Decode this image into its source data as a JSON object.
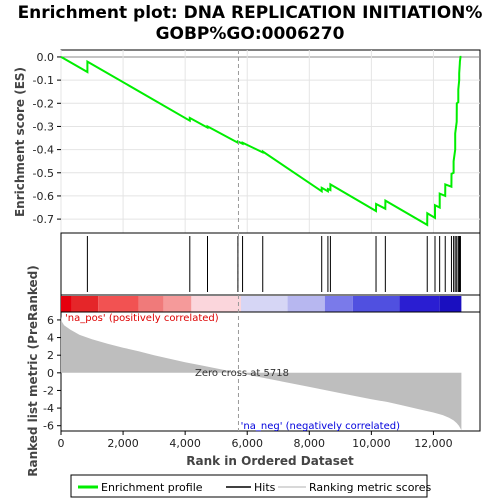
{
  "chart_data": {
    "type": "line",
    "title_line1": "Enrichment plot: DNA REPLICATION INITIATION%",
    "title_line2": "GOBP%GO:0006270",
    "ylabel_top": "Enrichment score (ES)",
    "ylabel_bottom": "Ranked list metric (PreRanked)",
    "xlabel": "Rank in Ordered Dataset",
    "xlim": [
      0,
      13500
    ],
    "es_ylim": [
      -0.76,
      0.03
    ],
    "metric_ylim": [
      -6.6,
      6.9
    ],
    "x_ticks": [
      0,
      2000,
      4000,
      6000,
      8000,
      10000,
      12000
    ],
    "x_tick_labels": [
      "0",
      "2,000",
      "4,000",
      "6,000",
      "8,000",
      "10,000",
      "12,000"
    ],
    "es_ticks": [
      0.0,
      -0.1,
      -0.2,
      -0.3,
      -0.4,
      -0.5,
      -0.6,
      -0.7
    ],
    "es_tick_labels": [
      "0.0",
      "-0.1",
      "-0.2",
      "-0.3",
      "-0.4",
      "-0.5",
      "-0.6",
      "-0.7"
    ],
    "metric_ticks": [
      6,
      4,
      2,
      0,
      -2,
      -4,
      -6
    ],
    "metric_tick_labels": [
      "6",
      "4",
      "2",
      "0",
      "-2",
      "-4",
      "-6"
    ],
    "n_genes": 12900,
    "zero_cross": 5718,
    "zero_cross_label": "Zero cross at 5718",
    "pos_label": "'na_pos' (positively correlated)",
    "neg_label": "'na_neg' (negatively correlated)",
    "enrichment_profile": {
      "x": [
        0,
        850,
        851,
        4150,
        4151,
        4720,
        4721,
        5700,
        5701,
        5850,
        5851,
        6500,
        6501,
        8400,
        8401,
        8600,
        8601,
        8680,
        8681,
        10150,
        10151,
        10450,
        10451,
        11800,
        11801,
        12050,
        12051,
        12200,
        12201,
        12380,
        12381,
        12580,
        12581,
        12650,
        12651,
        12700,
        12701,
        12750,
        12751,
        12800,
        12801,
        12830,
        12831,
        12850,
        12851,
        12870,
        12871,
        12900
      ],
      "y": [
        0.0,
        -0.065,
        -0.02,
        -0.275,
        -0.263,
        -0.305,
        -0.3,
        -0.37,
        -0.365,
        -0.375,
        -0.37,
        -0.412,
        -0.408,
        -0.58,
        -0.565,
        -0.58,
        -0.57,
        -0.575,
        -0.55,
        -0.665,
        -0.635,
        -0.655,
        -0.62,
        -0.725,
        -0.675,
        -0.695,
        -0.64,
        -0.65,
        -0.59,
        -0.6,
        -0.55,
        -0.56,
        -0.505,
        -0.5,
        -0.45,
        -0.4,
        -0.33,
        -0.28,
        -0.2,
        -0.195,
        -0.14,
        -0.1,
        -0.07,
        -0.03,
        -0.02,
        -0.003,
        0.0,
        0.0
      ]
    },
    "hits": [
      850,
      4150,
      4720,
      5700,
      5850,
      6500,
      8400,
      8600,
      8680,
      10150,
      10450,
      11800,
      12050,
      12200,
      12380,
      12580,
      12650,
      12700,
      12750,
      12800,
      12830,
      12850,
      12870
    ],
    "metric_curve": {
      "x": [
        0,
        30,
        100,
        300,
        600,
        1000,
        1500,
        2000,
        2500,
        3000,
        3500,
        4000,
        4500,
        5000,
        5500,
        5718,
        6000,
        7000,
        8000,
        9000,
        10000,
        10500,
        11000,
        11500,
        12000,
        12300,
        12500,
        12650,
        12750,
        12820,
        12870,
        12900
      ],
      "y": [
        6.4,
        5.8,
        5.4,
        4.9,
        4.3,
        3.8,
        3.3,
        2.85,
        2.45,
        2.0,
        1.6,
        1.2,
        0.85,
        0.5,
        0.15,
        0.0,
        -0.2,
        -0.9,
        -1.6,
        -2.3,
        -3.0,
        -3.3,
        -3.7,
        -4.1,
        -4.5,
        -4.8,
        -5.1,
        -5.4,
        -5.7,
        -6.0,
        -6.3,
        -6.5
      ]
    },
    "heatmap_colors": [
      "#e6000d",
      "#e52629",
      "#f25252",
      "#f07a7a",
      "#f59a9a",
      "#fbd6dc",
      "#d6d6f5",
      "#b7b7f0",
      "#7a7aea",
      "#5050e0",
      "#2a1ed2",
      "#1a0fc0"
    ],
    "heatmap_bounds": [
      0,
      350,
      1200,
      2500,
      3300,
      4200,
      5800,
      7300,
      8500,
      9400,
      10900,
      12200,
      12900
    ],
    "colors": {
      "profile": "#00ee00",
      "hits": "#000000",
      "metric_fill": "#bebebe",
      "pos_text": "#dd0000",
      "neg_text": "#0000dd",
      "zero_line": "#999999"
    },
    "legend": [
      "Enrichment profile",
      "Hits",
      "Ranking metric scores"
    ]
  }
}
